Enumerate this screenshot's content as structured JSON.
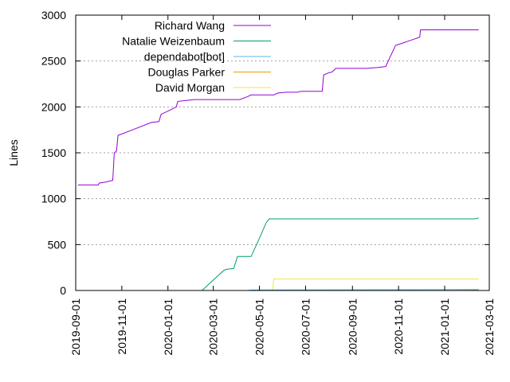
{
  "chart_data": {
    "type": "line",
    "title": "",
    "xlabel": "",
    "ylabel": "Lines",
    "x_type": "date",
    "xlim": [
      "2019-09-01",
      "2021-03-01"
    ],
    "ylim": [
      0,
      3000
    ],
    "x_ticks": [
      "2019-09-01",
      "2019-11-01",
      "2020-01-01",
      "2020-03-01",
      "2020-05-01",
      "2020-07-01",
      "2020-09-01",
      "2020-11-01",
      "2021-01-01",
      "2021-03-01"
    ],
    "y_ticks": [
      0,
      500,
      1000,
      1500,
      2000,
      2500,
      3000
    ],
    "grid": true,
    "legend": "top-center",
    "series": [
      {
        "name": "Richard Wang",
        "color": "#9400d3",
        "points": [
          [
            "2019-09-04",
            1150
          ],
          [
            "2019-10-01",
            1150
          ],
          [
            "2019-10-02",
            1170
          ],
          [
            "2019-10-10",
            1180
          ],
          [
            "2019-10-20",
            1200
          ],
          [
            "2019-10-22",
            1500
          ],
          [
            "2019-10-25",
            1520
          ],
          [
            "2019-10-27",
            1690
          ],
          [
            "2019-11-15",
            1750
          ],
          [
            "2019-12-10",
            1830
          ],
          [
            "2019-12-20",
            1840
          ],
          [
            "2019-12-23",
            1920
          ],
          [
            "2020-01-05",
            1970
          ],
          [
            "2020-01-12",
            2000
          ],
          [
            "2020-01-14",
            2060
          ],
          [
            "2020-01-25",
            2070
          ],
          [
            "2020-02-05",
            2080
          ],
          [
            "2020-04-05",
            2080
          ],
          [
            "2020-04-15",
            2110
          ],
          [
            "2020-04-20",
            2130
          ],
          [
            "2020-05-20",
            2130
          ],
          [
            "2020-05-25",
            2150
          ],
          [
            "2020-06-05",
            2160
          ],
          [
            "2020-06-20",
            2160
          ],
          [
            "2020-06-25",
            2170
          ],
          [
            "2020-07-15",
            2170
          ],
          [
            "2020-07-23",
            2170
          ],
          [
            "2020-07-25",
            2350
          ],
          [
            "2020-07-31",
            2370
          ],
          [
            "2020-08-05",
            2380
          ],
          [
            "2020-08-10",
            2420
          ],
          [
            "2020-09-20",
            2420
          ],
          [
            "2020-10-05",
            2430
          ],
          [
            "2020-10-15",
            2440
          ],
          [
            "2020-10-28",
            2670
          ],
          [
            "2020-11-15",
            2720
          ],
          [
            "2020-11-29",
            2760
          ],
          [
            "2020-11-30",
            2840
          ],
          [
            "2021-02-15",
            2840
          ]
        ]
      },
      {
        "name": "Natalie Weizenbaum",
        "color": "#009e73",
        "points": [
          [
            "2020-02-15",
            0
          ],
          [
            "2020-03-15",
            220
          ],
          [
            "2020-03-18",
            230
          ],
          [
            "2020-03-28",
            240
          ],
          [
            "2020-04-02",
            370
          ],
          [
            "2020-04-20",
            370
          ],
          [
            "2020-05-01",
            570
          ],
          [
            "2020-05-10",
            740
          ],
          [
            "2020-05-14",
            780
          ],
          [
            "2021-02-10",
            780
          ],
          [
            "2021-02-15",
            790
          ]
        ]
      },
      {
        "name": "dependabot[bot]",
        "color": "#56b4e9",
        "points": [
          [
            "2020-04-15",
            0
          ],
          [
            "2020-04-20",
            5
          ],
          [
            "2021-02-15",
            10
          ]
        ]
      },
      {
        "name": "Douglas Parker",
        "color": "#e69f00",
        "points": [
          [
            "2021-01-10",
            0
          ],
          [
            "2021-02-15",
            5
          ]
        ]
      },
      {
        "name": "David Morgan",
        "color": "#f0e442",
        "points": [
          [
            "2020-05-10",
            0
          ],
          [
            "2020-05-18",
            0
          ],
          [
            "2020-05-20",
            125
          ],
          [
            "2021-02-15",
            125
          ]
        ]
      }
    ]
  }
}
